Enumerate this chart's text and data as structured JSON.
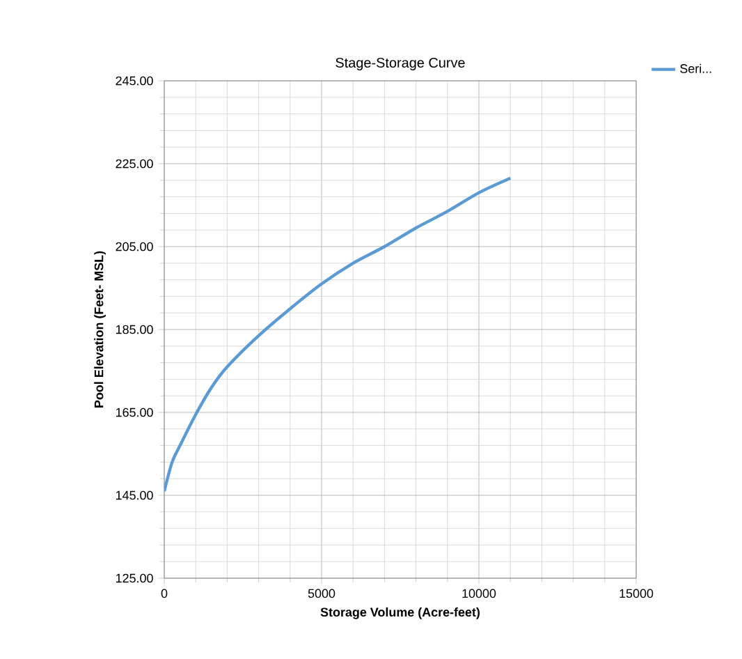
{
  "chart_data": {
    "type": "line",
    "title": "Stage-Storage Curve",
    "xlabel": "Storage Volume (Acre-feet)",
    "ylabel": "Pool Elevation (Feet- MSL)",
    "x": [
      0,
      250,
      500,
      1000,
      1500,
      2000,
      3000,
      4000,
      5000,
      6000,
      7000,
      8000,
      9000,
      10000,
      11000
    ],
    "series": [
      {
        "name": "Seri...",
        "color": "#5b9bd5",
        "values": [
          146,
          153,
          157,
          164.5,
          171,
          176,
          183.5,
          190,
          196,
          201,
          205,
          209.5,
          213.5,
          218,
          221.5
        ]
      }
    ],
    "xlim": [
      0,
      15000
    ],
    "xticks": [
      0,
      5000,
      10000,
      15000
    ],
    "ylim": [
      125,
      245
    ],
    "yticks": [
      {
        "value": 125,
        "label": "125.00"
      },
      {
        "value": 145,
        "label": "145.00"
      },
      {
        "value": 165,
        "label": "165.00"
      },
      {
        "value": 185,
        "label": "185.00"
      },
      {
        "value": 205,
        "label": "205.00"
      },
      {
        "value": 225,
        "label": "225.00"
      },
      {
        "value": 245,
        "label": "245.00"
      }
    ],
    "grid": true,
    "legend": "top right",
    "marker": "none",
    "line_style": "solid"
  }
}
